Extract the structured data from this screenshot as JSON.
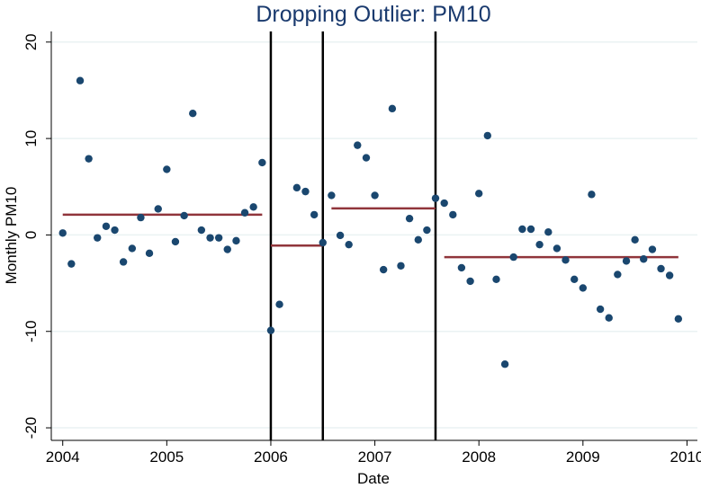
{
  "chart_data": {
    "type": "scatter",
    "title": "Dropping Outlier: PM10",
    "x_label": "Date",
    "y_label": "Monthly PM10",
    "xlim": [
      2003.89,
      2010.1
    ],
    "xticks": [
      2004,
      2005,
      2006,
      2007,
      2008,
      2009,
      2010
    ],
    "ylim": [
      21.1,
      -21.3
    ],
    "yticks": [
      -20,
      -10,
      0,
      10,
      20
    ],
    "grid": true,
    "series": [
      {
        "name": "PM10",
        "color": "#1a476f",
        "x": [
          2004,
          2004.083,
          2004.167,
          2004.25,
          2004.333,
          2004.417,
          2004.5,
          2004.583,
          2004.667,
          2004.75,
          2004.833,
          2004.917,
          2005,
          2005.083,
          2005.167,
          2005.25,
          2005.333,
          2005.417,
          2005.5,
          2005.583,
          2005.667,
          2005.75,
          2005.833,
          2005.917,
          2006,
          2006.083,
          2006.25,
          2006.333,
          2006.417,
          2006.5,
          2006.583,
          2006.667,
          2006.75,
          2006.833,
          2006.917,
          2007,
          2007.083,
          2007.167,
          2007.25,
          2007.333,
          2007.417,
          2007.5,
          2007.583,
          2007.667,
          2007.75,
          2007.833,
          2007.917,
          2008,
          2008.083,
          2008.167,
          2008.25,
          2008.333,
          2008.417,
          2008.5,
          2008.583,
          2008.667,
          2008.75,
          2008.833,
          2008.917,
          2009,
          2009.083,
          2009.167,
          2009.25,
          2009.333,
          2009.417,
          2009.5,
          2009.583,
          2009.667,
          2009.75,
          2009.833,
          2009.917
        ],
        "values": [
          0.2,
          -3.0,
          16.0,
          7.9,
          -0.3,
          0.9,
          0.5,
          -2.8,
          -1.4,
          1.8,
          -1.9,
          2.7,
          6.8,
          -0.7,
          2.0,
          12.6,
          0.5,
          -0.3,
          -0.3,
          -1.5,
          -0.6,
          2.3,
          2.9,
          7.5,
          -9.9,
          -7.2,
          4.9,
          4.5,
          2.1,
          -0.8,
          4.1,
          -0.05,
          -1.0,
          9.3,
          8.0,
          4.1,
          -3.6,
          13.1,
          -3.2,
          1.7,
          -0.5,
          0.5,
          3.8,
          3.3,
          2.1,
          -3.4,
          -4.8,
          4.3,
          10.3,
          -4.6,
          -13.4,
          -2.3,
          0.6,
          0.6,
          -1.0,
          0.3,
          -1.4,
          -2.6,
          -4.6,
          -5.5,
          4.2,
          -7.7,
          -8.6,
          -4.1,
          -2.7,
          -0.5,
          -2.5,
          -1.5,
          -3.5,
          -4.2,
          -8.7
        ]
      }
    ],
    "segments": {
      "color": "#90353b",
      "items": [
        {
          "x": [
            2004,
            2005.917
          ],
          "value": 2.1
        },
        {
          "x": [
            2006,
            2006.5
          ],
          "value": -1.1
        },
        {
          "x": [
            2006.583,
            2007.583
          ],
          "value": 2.75
        },
        {
          "x": [
            2007.667,
            2009.917
          ],
          "value": -2.3
        }
      ]
    },
    "vlines": [
      2006,
      2006.5,
      2007.583
    ]
  }
}
